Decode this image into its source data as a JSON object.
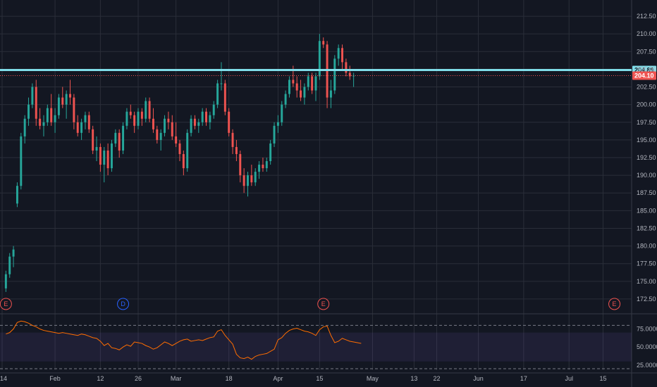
{
  "chart_data": [
    {
      "type": "candlestick",
      "title": "",
      "xlabel": "",
      "ylabel": "",
      "yaxis_position": "right",
      "grid": true,
      "ylim": [
        171,
        214
      ],
      "yticks": [
        "172.50",
        "175.00",
        "177.50",
        "180.00",
        "182.50",
        "185.00",
        "187.50",
        "190.00",
        "192.50",
        "195.00",
        "197.50",
        "200.00",
        "202.50",
        "205.00",
        "207.50",
        "210.00",
        "212.50"
      ],
      "ytick_values": [
        172.5,
        175,
        177.5,
        180,
        182.5,
        185,
        187.5,
        190,
        192.5,
        195,
        197.5,
        200,
        202.5,
        205,
        207.5,
        210,
        212.5
      ],
      "xticks": [
        "14",
        "Feb",
        "12",
        "26",
        "Mar",
        "18",
        "Apr",
        "15",
        "May",
        "13",
        "22",
        "Jun",
        "17",
        "Jul",
        "15"
      ],
      "xtick_bars": [
        -1,
        13,
        25,
        35,
        45,
        59,
        72,
        83,
        97,
        108,
        114,
        125,
        137,
        149,
        158
      ],
      "bar_range": [
        -1,
        165
      ],
      "colors": {
        "up": "#26a69a",
        "down": "#ef5350"
      },
      "ohlc": [
        [
          174.0,
          176.5,
          173.5,
          176.0
        ],
        [
          176.0,
          179.0,
          175.5,
          178.5
        ],
        [
          178.5,
          180.0,
          177.0,
          179.5
        ],
        [
          186.0,
          189.0,
          185.5,
          188.5
        ],
        [
          188.5,
          196.0,
          188.0,
          195.5
        ],
        [
          195.5,
          198.5,
          194.5,
          198.0
        ],
        [
          198.0,
          201.0,
          197.0,
          200.0
        ],
        [
          200.0,
          203.0,
          199.5,
          202.5
        ],
        [
          202.5,
          203.5,
          197.0,
          198.0
        ],
        [
          198.0,
          199.5,
          196.5,
          197.0
        ],
        [
          197.0,
          198.5,
          195.5,
          197.5
        ],
        [
          197.5,
          200.0,
          197.0,
          199.5
        ],
        [
          199.5,
          201.5,
          197.0,
          197.5
        ],
        [
          197.5,
          199.5,
          196.0,
          198.5
        ],
        [
          198.5,
          201.5,
          198.0,
          201.0
        ],
        [
          201.0,
          202.5,
          199.5,
          200.0
        ],
        [
          200.0,
          202.0,
          198.0,
          201.5
        ],
        [
          201.5,
          203.5,
          200.0,
          201.0
        ],
        [
          201.0,
          201.5,
          196.5,
          197.5
        ],
        [
          197.5,
          198.5,
          195.5,
          196.0
        ],
        [
          196.0,
          198.0,
          195.0,
          197.5
        ],
        [
          197.5,
          199.0,
          196.5,
          198.5
        ],
        [
          198.5,
          199.0,
          196.0,
          196.5
        ],
        [
          196.5,
          197.0,
          193.0,
          193.5
        ],
        [
          193.5,
          195.5,
          192.0,
          194.0
        ],
        [
          194.0,
          194.5,
          190.5,
          191.5
        ],
        [
          191.5,
          194.0,
          189.0,
          193.5
        ],
        [
          193.5,
          194.5,
          190.0,
          191.0
        ],
        [
          191.0,
          195.0,
          190.5,
          194.5
        ],
        [
          194.5,
          196.5,
          194.0,
          196.0
        ],
        [
          196.0,
          196.5,
          192.5,
          193.5
        ],
        [
          193.5,
          197.5,
          193.0,
          197.0
        ],
        [
          197.0,
          199.5,
          196.5,
          199.0
        ],
        [
          199.0,
          200.0,
          198.0,
          198.5
        ],
        [
          198.5,
          199.0,
          196.0,
          197.0
        ],
        [
          197.0,
          199.5,
          196.5,
          199.0
        ],
        [
          199.0,
          199.5,
          197.0,
          198.0
        ],
        [
          198.0,
          201.0,
          197.5,
          200.5
        ],
        [
          200.5,
          201.0,
          197.5,
          198.0
        ],
        [
          198.0,
          199.5,
          196.0,
          196.5
        ],
        [
          196.5,
          197.0,
          194.5,
          195.0
        ],
        [
          195.0,
          196.5,
          193.5,
          196.0
        ],
        [
          196.0,
          198.5,
          195.5,
          198.0
        ],
        [
          198.0,
          199.0,
          196.5,
          197.5
        ],
        [
          197.5,
          198.5,
          195.0,
          195.5
        ],
        [
          195.5,
          197.5,
          194.0,
          194.5
        ],
        [
          194.5,
          195.0,
          192.0,
          193.0
        ],
        [
          193.0,
          193.5,
          190.0,
          191.0
        ],
        [
          191.0,
          196.5,
          190.5,
          196.0
        ],
        [
          196.0,
          198.5,
          195.5,
          198.0
        ],
        [
          198.0,
          198.5,
          196.5,
          197.0
        ],
        [
          197.0,
          198.0,
          196.0,
          197.5
        ],
        [
          197.5,
          199.5,
          197.0,
          199.0
        ],
        [
          199.0,
          199.5,
          197.0,
          197.5
        ],
        [
          197.5,
          199.0,
          196.5,
          198.5
        ],
        [
          198.5,
          200.5,
          198.0,
          200.0
        ],
        [
          200.0,
          203.5,
          199.5,
          203.0
        ],
        [
          203.0,
          206.0,
          202.0,
          203.0
        ],
        [
          203.0,
          203.5,
          198.5,
          199.0
        ],
        [
          199.0,
          199.5,
          195.5,
          196.0
        ],
        [
          196.0,
          196.5,
          193.0,
          194.0
        ],
        [
          194.0,
          195.0,
          192.0,
          193.0
        ],
        [
          193.0,
          193.5,
          189.0,
          190.0
        ],
        [
          190.0,
          191.0,
          187.5,
          188.5
        ],
        [
          188.5,
          190.5,
          187.0,
          190.0
        ],
        [
          190.0,
          191.5,
          188.5,
          189.0
        ],
        [
          189.0,
          191.0,
          188.5,
          190.5
        ],
        [
          190.5,
          192.0,
          189.5,
          191.5
        ],
        [
          191.5,
          192.5,
          190.5,
          191.0
        ],
        [
          191.0,
          192.5,
          190.5,
          192.0
        ],
        [
          192.0,
          195.0,
          191.5,
          194.5
        ],
        [
          194.5,
          197.5,
          194.0,
          197.0
        ],
        [
          197.0,
          198.5,
          196.0,
          197.5
        ],
        [
          197.5,
          200.5,
          197.0,
          200.0
        ],
        [
          200.0,
          202.0,
          199.5,
          201.5
        ],
        [
          201.5,
          204.0,
          201.0,
          203.5
        ],
        [
          203.5,
          205.5,
          202.5,
          203.0
        ],
        [
          203.0,
          204.0,
          201.0,
          202.0
        ],
        [
          202.0,
          203.5,
          200.5,
          201.0
        ],
        [
          201.0,
          203.0,
          200.0,
          202.5
        ],
        [
          202.5,
          204.5,
          202.0,
          204.0
        ],
        [
          204.0,
          204.5,
          201.5,
          202.0
        ],
        [
          202.0,
          204.5,
          200.5,
          204.0
        ],
        [
          204.0,
          210.0,
          203.5,
          209.0
        ],
        [
          209.0,
          209.5,
          208.0,
          208.5
        ],
        [
          208.5,
          209.0,
          199.5,
          201.0
        ],
        [
          201.0,
          203.5,
          199.5,
          202.0
        ],
        [
          202.0,
          207.0,
          201.5,
          206.5
        ],
        [
          206.5,
          208.5,
          205.5,
          208.0
        ],
        [
          208.0,
          208.5,
          205.0,
          206.0
        ],
        [
          206.0,
          206.5,
          204.0,
          204.5
        ],
        [
          204.5,
          205.5,
          203.5,
          204.0
        ],
        [
          204.0,
          204.5,
          202.5,
          204.1
        ]
      ],
      "lines": [
        {
          "label": "204.89",
          "value": 204.89,
          "color": "#80deea",
          "style": "solid"
        },
        {
          "label": "204.10",
          "value": 204.1,
          "color": "#ef5350",
          "style": "dotted"
        }
      ],
      "events": [
        {
          "label": "E",
          "bar": 0,
          "color": "#ef5350"
        },
        {
          "label": "D",
          "bar": 31,
          "color": "#2962ff"
        },
        {
          "label": "E",
          "bar": 84,
          "color": "#ef5350"
        },
        {
          "label": "E",
          "bar": 161,
          "color": "#ef5350"
        }
      ]
    },
    {
      "type": "line",
      "title": "",
      "xlabel": "",
      "ylabel": "",
      "ylim": [
        18,
        95
      ],
      "yticks": [
        "25.0000",
        "50.0000",
        "75.0000"
      ],
      "ytick_values": [
        25,
        50,
        75
      ],
      "band": [
        30,
        70
      ],
      "band_color": "#7e57c2",
      "dashed_levels": [
        20,
        80
      ],
      "line_color": "#ff6d00",
      "values": [
        68,
        70,
        75,
        84,
        86,
        85,
        83,
        80,
        78,
        75,
        73,
        72,
        71,
        70,
        69,
        70,
        69,
        68,
        67,
        66,
        68,
        67,
        65,
        63,
        62,
        58,
        52,
        55,
        49,
        48,
        46,
        50,
        53,
        51,
        57,
        56,
        55,
        52,
        50,
        47,
        49,
        53,
        57,
        55,
        52,
        55,
        58,
        60,
        61,
        58,
        59,
        60,
        59,
        61,
        63,
        64,
        72,
        74,
        66,
        60,
        54,
        40,
        35,
        34,
        36,
        33,
        37,
        39,
        40,
        41,
        44,
        47,
        60,
        63,
        69,
        73,
        75,
        76,
        74,
        72,
        71,
        69,
        66,
        74,
        78,
        79,
        66,
        56,
        58,
        62,
        60,
        58,
        57,
        56,
        55
      ]
    }
  ]
}
